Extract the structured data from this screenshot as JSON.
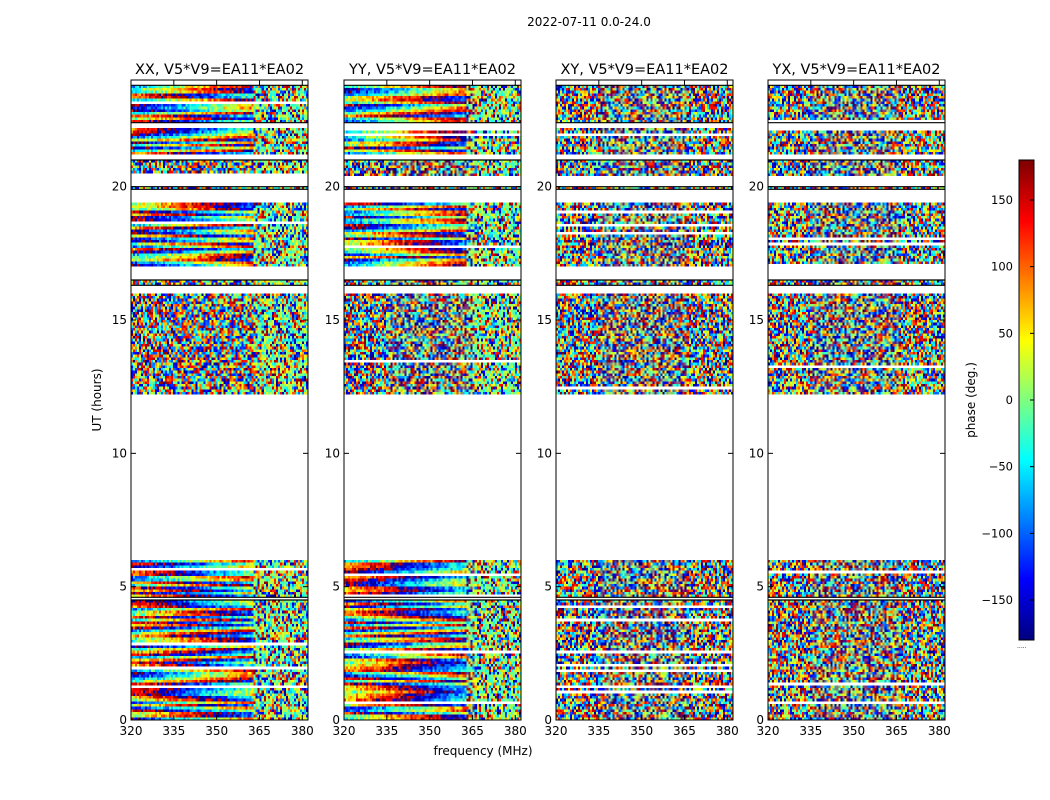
{
  "figure": {
    "suptitle": "2022-07-11 0.0-24.0",
    "xlabel": "frequency (MHz)",
    "ylabel": "UT (hours)",
    "colorbar_label": "phase (deg.)"
  },
  "chart_data": {
    "type": "heatmap",
    "x_range": [
      320,
      382
    ],
    "y_range": [
      0,
      24
    ],
    "x_ticks": [
      320,
      335,
      350,
      365,
      380
    ],
    "y_ticks": [
      0,
      5,
      10,
      15,
      20
    ],
    "colorbar": {
      "range": [
        -180,
        180
      ],
      "ticks": [
        -150,
        -100,
        -50,
        0,
        50,
        100,
        150
      ],
      "colormap": "jet"
    },
    "observed_bands_ut": [
      [
        0,
        4.5
      ],
      [
        4.6,
        6.0
      ],
      [
        12.2,
        16.0
      ],
      [
        16.3,
        16.5
      ],
      [
        17.0,
        19.4
      ],
      [
        19.9,
        20.0
      ],
      [
        20.4,
        21.0
      ],
      [
        21.2,
        22.2
      ],
      [
        22.4,
        23.8
      ]
    ],
    "panels": [
      {
        "title": "XX, V5*V9=EA11*EA02",
        "polarization": "XX",
        "structure": "coherent",
        "seed": 11
      },
      {
        "title": "YY, V5*V9=EA11*EA02",
        "polarization": "YY",
        "structure": "coherent",
        "seed": 23
      },
      {
        "title": "XY, V5*V9=EA11*EA02",
        "polarization": "XY",
        "structure": "noise",
        "seed": 37
      },
      {
        "title": "YX, V5*V9=EA11*EA02",
        "polarization": "YX",
        "structure": "noise",
        "seed": 53
      }
    ]
  }
}
